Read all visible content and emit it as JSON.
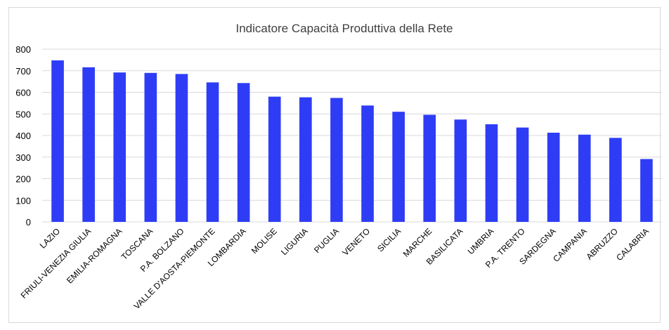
{
  "chart_data": {
    "type": "bar",
    "title": "Indicatore Capacità Produttiva della Rete",
    "xlabel": "",
    "ylabel": "",
    "ylim": [
      0,
      800
    ],
    "yticks": [
      0,
      100,
      200,
      300,
      400,
      500,
      600,
      700,
      800
    ],
    "grid": true,
    "legend": "none",
    "bar_color": "#2e3df5",
    "categories": [
      "LAZIO",
      "FRIULI-VENEZIA GIULIA",
      "EMILIA-ROMAGNA",
      "TOSCANA",
      "P.A. BOLZANO",
      "VALLE D'AOSTA-PIEMONTE",
      "LOMBARDIA",
      "MOLISE",
      "LIGURIA",
      "PUGLIA",
      "VENETO",
      "SICILIA",
      "MARCHE",
      "BASILICATA",
      "UMBRIA",
      "P.A. TRENTO",
      "SARDEGNA",
      "CAMPANIA",
      "ABRUZZO",
      "CALABRIA"
    ],
    "values": [
      748,
      716,
      692,
      690,
      685,
      646,
      643,
      580,
      577,
      574,
      539,
      510,
      496,
      474,
      452,
      437,
      413,
      404,
      389,
      291
    ]
  }
}
